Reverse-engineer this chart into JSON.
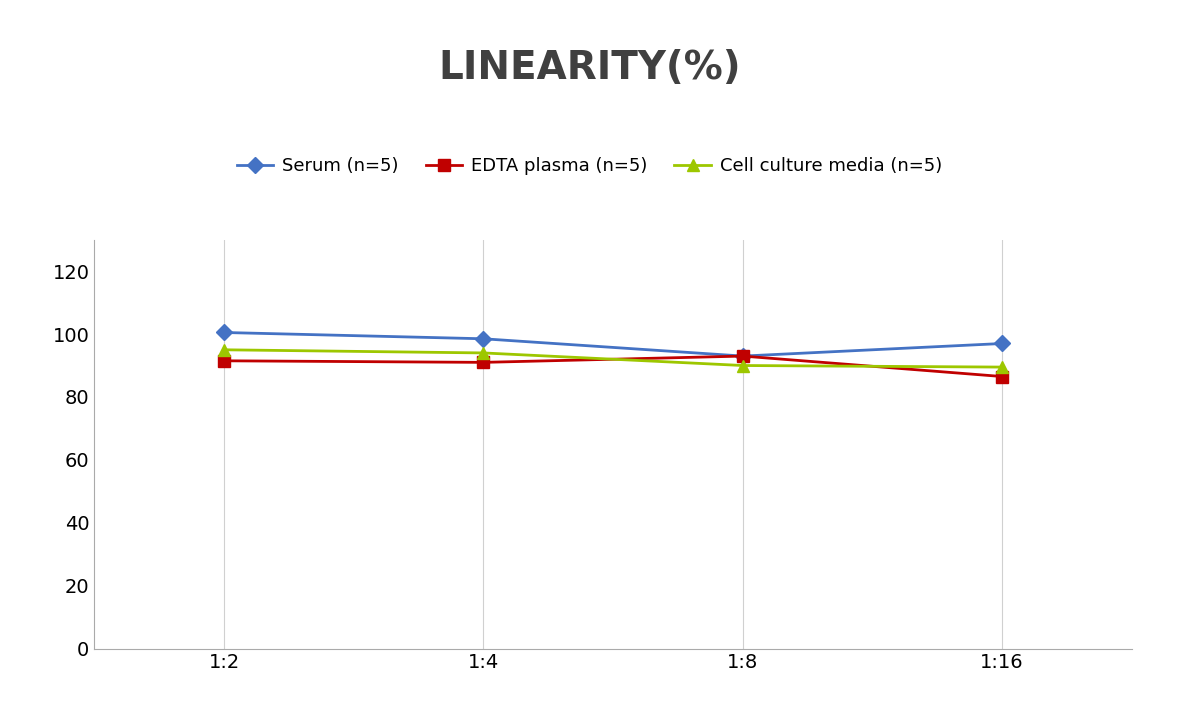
{
  "title": "LINEARITY(%)",
  "title_fontsize": 28,
  "title_fontweight": "bold",
  "title_color": "#404040",
  "x_labels": [
    "1:2",
    "1:4",
    "1:8",
    "1:16"
  ],
  "x_positions": [
    0,
    1,
    2,
    3
  ],
  "series": [
    {
      "label": "Serum (n=5)",
      "values": [
        100.5,
        98.5,
        93.0,
        97.0
      ],
      "color": "#4472C4",
      "marker": "D",
      "markersize": 8,
      "linewidth": 2.0
    },
    {
      "label": "EDTA plasma (n=5)",
      "values": [
        91.5,
        91.0,
        93.0,
        86.5
      ],
      "color": "#C00000",
      "marker": "s",
      "markersize": 8,
      "linewidth": 2.0
    },
    {
      "label": "Cell culture media (n=5)",
      "values": [
        95.0,
        94.0,
        90.0,
        89.5
      ],
      "color": "#9DC700",
      "marker": "^",
      "markersize": 8,
      "linewidth": 2.0
    }
  ],
  "ylim": [
    0,
    130
  ],
  "yticks": [
    0,
    20,
    40,
    60,
    80,
    100,
    120
  ],
  "background_color": "#ffffff",
  "grid_color": "#d0d0d0",
  "legend_fontsize": 13,
  "tick_fontsize": 14,
  "spine_color": "#aaaaaa"
}
